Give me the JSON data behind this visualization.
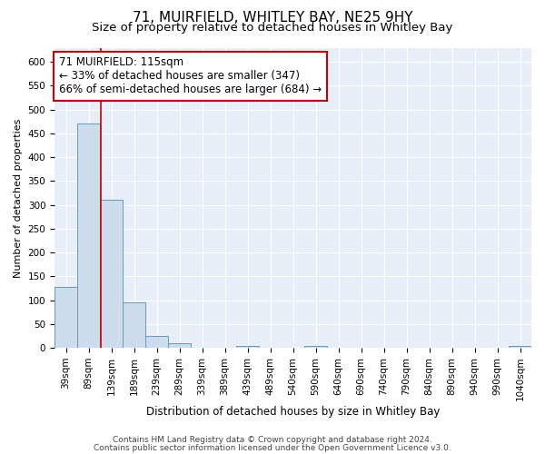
{
  "title": "71, MUIRFIELD, WHITLEY BAY, NE25 9HY",
  "subtitle": "Size of property relative to detached houses in Whitley Bay",
  "xlabel": "Distribution of detached houses by size in Whitley Bay",
  "ylabel": "Number of detached properties",
  "footnote1": "Contains HM Land Registry data © Crown copyright and database right 2024.",
  "footnote2": "Contains public sector information licensed under the Open Government Licence v3.0.",
  "bar_color": "#ccdcec",
  "bar_edge_color": "#6699bb",
  "vline_color": "#cc0000",
  "annotation_text": "71 MUIRFIELD: 115sqm\n← 33% of detached houses are smaller (347)\n66% of semi-detached houses are larger (684) →",
  "annotation_box_color": "#ffffff",
  "annotation_box_edge": "#cc0000",
  "categories": [
    "39sqm",
    "89sqm",
    "139sqm",
    "189sqm",
    "239sqm",
    "289sqm",
    "339sqm",
    "389sqm",
    "439sqm",
    "489sqm",
    "540sqm",
    "590sqm",
    "640sqm",
    "690sqm",
    "740sqm",
    "790sqm",
    "840sqm",
    "890sqm",
    "940sqm",
    "990sqm",
    "1040sqm"
  ],
  "values": [
    128,
    470,
    310,
    95,
    25,
    10,
    0,
    0,
    5,
    0,
    0,
    5,
    0,
    0,
    0,
    0,
    0,
    0,
    0,
    0,
    5
  ],
  "ylim": [
    0,
    630
  ],
  "yticks": [
    0,
    50,
    100,
    150,
    200,
    250,
    300,
    350,
    400,
    450,
    500,
    550,
    600
  ],
  "background_color": "#ffffff",
  "plot_bg_color": "#e8eef8",
  "title_fontsize": 11,
  "subtitle_fontsize": 9.5,
  "annotation_fontsize": 8.5,
  "tick_fontsize": 7.5,
  "ylabel_fontsize": 8,
  "xlabel_fontsize": 8.5
}
